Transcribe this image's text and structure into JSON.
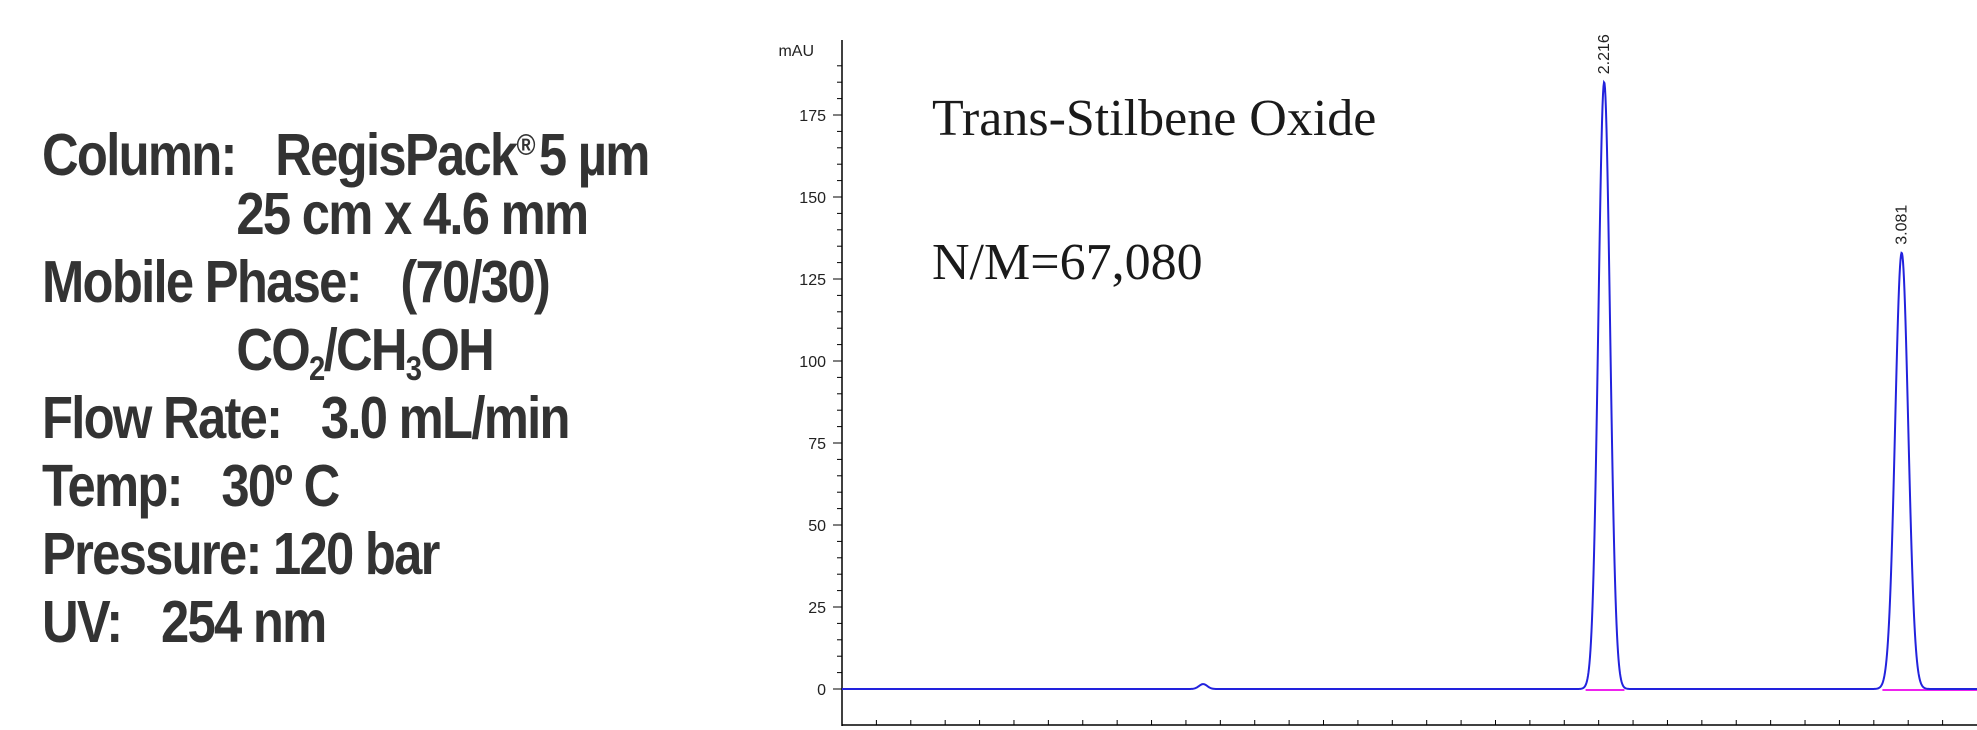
{
  "conditions": {
    "column_label": "Column:",
    "column_name": "RegisPack",
    "column_reg": "®",
    "column_particle": "5 µm",
    "column_dims": "25 cm x 4.6 mm",
    "mobile_label": "Mobile Phase:",
    "mobile_ratio": "(70/30)",
    "mobile_co": "CO",
    "mobile_2": "2",
    "mobile_mid": "/CH",
    "mobile_3": "3",
    "mobile_oh": "OH",
    "flow_label": "Flow Rate:",
    "flow_value": "3.0 mL/min",
    "temp_label": "Temp:",
    "temp_value": "30º C",
    "pressure_label": "Pressure:",
    "pressure_value": "120 bar",
    "uv_label": "UV:",
    "uv_value": "254 nm"
  },
  "chart_data": {
    "type": "line",
    "title": "Trans-Stilbene Oxide",
    "subtitle": "N/M=67,080",
    "ylabel": "mAU",
    "xlabel": "",
    "ylim": [
      0,
      190
    ],
    "yticks": [
      0,
      25,
      50,
      75,
      100,
      125,
      150,
      175
    ],
    "ytick_labels": [
      "0",
      "25",
      "50",
      "75",
      "100",
      "125",
      "150",
      "175"
    ],
    "xlim": [
      0,
      3.3
    ],
    "grid": false,
    "series": [
      {
        "color": "#2222dd",
        "baseline": 0,
        "bumps": [
          {
            "x": 1.05,
            "height": 1.5,
            "width": 0.012
          }
        ],
        "peaks": [
          {
            "label": "2.216",
            "x": 2.216,
            "height": 185,
            "width": 0.017
          },
          {
            "label": "3.081",
            "x": 3.081,
            "height": 133,
            "width": 0.019
          }
        ]
      }
    ],
    "integration_baselines": [
      {
        "x_start": 2.162,
        "x_end": 2.275,
        "color": "#ee22ee"
      },
      {
        "x_start": 3.025,
        "x_end": 3.3,
        "color": "#ee22ee"
      }
    ],
    "colors": {
      "trace": "#2222dd",
      "baseline": "#ee22ee",
      "axis": "#000000"
    }
  }
}
